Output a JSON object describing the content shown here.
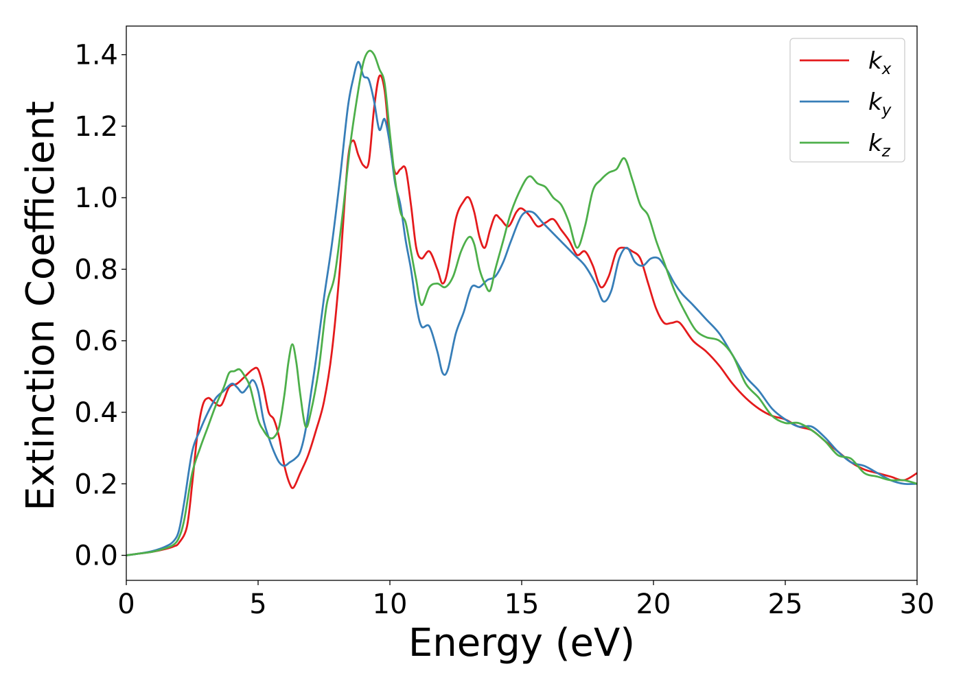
{
  "chart_data": {
    "type": "line",
    "title": "",
    "xlabel": "Energy (eV)",
    "ylabel": "Extinction Coefficient",
    "xlim": [
      0,
      30
    ],
    "ylim": [
      -0.07,
      1.48
    ],
    "xticks": [
      0,
      5,
      10,
      15,
      20,
      25,
      30
    ],
    "yticks": [
      0.0,
      0.2,
      0.4,
      0.6,
      0.8,
      1.0,
      1.2,
      1.4
    ],
    "xtick_labels": [
      "0",
      "5",
      "10",
      "15",
      "20",
      "25",
      "30"
    ],
    "ytick_labels": [
      "0.0",
      "0.2",
      "0.4",
      "0.6",
      "0.8",
      "1.0",
      "1.2",
      "1.4"
    ],
    "grid": false,
    "legend_position": "top-right",
    "series": [
      {
        "name": "k_x",
        "legend_base": "k",
        "legend_sub": "x",
        "color": "#e41a1c",
        "x": [
          0,
          0.5,
          1,
          1.5,
          1.8,
          2,
          2.3,
          2.5,
          2.7,
          2.9,
          3.1,
          3.3,
          3.6,
          3.9,
          4.2,
          4.5,
          4.8,
          5.0,
          5.2,
          5.4,
          5.6,
          5.8,
          6.0,
          6.2,
          6.35,
          6.6,
          6.9,
          7.2,
          7.5,
          7.8,
          8.1,
          8.4,
          8.6,
          8.8,
          9.0,
          9.2,
          9.4,
          9.6,
          9.8,
          10.0,
          10.2,
          10.4,
          10.6,
          10.8,
          11.0,
          11.2,
          11.5,
          11.8,
          12.0,
          12.2,
          12.5,
          12.8,
          13.0,
          13.2,
          13.4,
          13.6,
          13.8,
          14.0,
          14.2,
          14.5,
          14.8,
          15.0,
          15.3,
          15.6,
          15.9,
          16.2,
          16.5,
          16.8,
          17.1,
          17.4,
          17.7,
          18.0,
          18.3,
          18.6,
          18.9,
          19.2,
          19.5,
          19.8,
          20.1,
          20.4,
          20.7,
          21.0,
          21.5,
          22.0,
          22.5,
          23.0,
          23.5,
          24.0,
          24.5,
          25.0,
          25.5,
          26.0,
          26.5,
          27.0,
          27.5,
          28.0,
          28.5,
          29.0,
          29.5,
          30.0
        ],
        "y": [
          0.0,
          0.005,
          0.01,
          0.018,
          0.025,
          0.035,
          0.08,
          0.2,
          0.34,
          0.42,
          0.44,
          0.43,
          0.42,
          0.47,
          0.48,
          0.5,
          0.52,
          0.52,
          0.47,
          0.4,
          0.38,
          0.33,
          0.25,
          0.2,
          0.19,
          0.23,
          0.28,
          0.35,
          0.43,
          0.57,
          0.8,
          1.1,
          1.16,
          1.12,
          1.09,
          1.1,
          1.25,
          1.34,
          1.3,
          1.15,
          1.07,
          1.08,
          1.08,
          0.98,
          0.86,
          0.83,
          0.85,
          0.8,
          0.76,
          0.8,
          0.94,
          0.99,
          1.0,
          0.96,
          0.89,
          0.86,
          0.91,
          0.95,
          0.94,
          0.92,
          0.96,
          0.97,
          0.95,
          0.92,
          0.93,
          0.94,
          0.91,
          0.88,
          0.84,
          0.85,
          0.81,
          0.75,
          0.78,
          0.85,
          0.86,
          0.85,
          0.83,
          0.76,
          0.69,
          0.65,
          0.65,
          0.65,
          0.6,
          0.57,
          0.53,
          0.48,
          0.44,
          0.41,
          0.39,
          0.38,
          0.36,
          0.35,
          0.32,
          0.29,
          0.26,
          0.24,
          0.23,
          0.22,
          0.21,
          0.23
        ]
      },
      {
        "name": "k_y",
        "legend_base": "k",
        "legend_sub": "y",
        "color": "#377eb8",
        "x": [
          0,
          0.5,
          1,
          1.5,
          1.8,
          2.0,
          2.2,
          2.5,
          2.8,
          3.1,
          3.4,
          3.7,
          4.0,
          4.2,
          4.4,
          4.6,
          4.8,
          5.0,
          5.2,
          5.4,
          5.6,
          5.8,
          6.0,
          6.2,
          6.4,
          6.6,
          6.8,
          7.0,
          7.2,
          7.5,
          7.8,
          8.1,
          8.4,
          8.6,
          8.8,
          9.0,
          9.2,
          9.4,
          9.6,
          9.8,
          10.0,
          10.2,
          10.4,
          10.6,
          10.8,
          11.0,
          11.2,
          11.5,
          11.8,
          12.0,
          12.2,
          12.5,
          12.8,
          13.1,
          13.4,
          13.7,
          14.0,
          14.3,
          14.6,
          15.0,
          15.4,
          15.8,
          16.2,
          16.6,
          17.0,
          17.4,
          17.8,
          18.1,
          18.4,
          18.7,
          19.0,
          19.3,
          19.6,
          19.9,
          20.2,
          20.5,
          20.8,
          21.1,
          21.5,
          22.0,
          22.5,
          23.0,
          23.5,
          24.0,
          24.5,
          25.0,
          25.5,
          26.0,
          26.5,
          27.0,
          27.5,
          28.0,
          28.5,
          29.0,
          29.5,
          30.0
        ],
        "y": [
          0.0,
          0.005,
          0.012,
          0.025,
          0.04,
          0.07,
          0.15,
          0.29,
          0.35,
          0.4,
          0.44,
          0.46,
          0.48,
          0.47,
          0.455,
          0.47,
          0.49,
          0.46,
          0.38,
          0.33,
          0.29,
          0.26,
          0.25,
          0.26,
          0.27,
          0.29,
          0.35,
          0.45,
          0.55,
          0.72,
          0.87,
          1.05,
          1.25,
          1.33,
          1.38,
          1.34,
          1.33,
          1.27,
          1.19,
          1.22,
          1.15,
          1.04,
          0.98,
          0.88,
          0.8,
          0.7,
          0.64,
          0.64,
          0.57,
          0.51,
          0.52,
          0.62,
          0.68,
          0.75,
          0.75,
          0.77,
          0.78,
          0.82,
          0.88,
          0.95,
          0.96,
          0.93,
          0.9,
          0.87,
          0.84,
          0.81,
          0.76,
          0.71,
          0.74,
          0.83,
          0.86,
          0.82,
          0.81,
          0.83,
          0.83,
          0.8,
          0.76,
          0.73,
          0.7,
          0.66,
          0.62,
          0.56,
          0.5,
          0.46,
          0.41,
          0.38,
          0.36,
          0.36,
          0.33,
          0.29,
          0.26,
          0.25,
          0.23,
          0.21,
          0.2,
          0.2
        ]
      },
      {
        "name": "k_z",
        "legend_base": "k",
        "legend_sub": "z",
        "color": "#4daf4a",
        "x": [
          0,
          0.5,
          1,
          1.5,
          1.8,
          2.0,
          2.2,
          2.5,
          2.8,
          3.1,
          3.4,
          3.7,
          3.9,
          4.1,
          4.3,
          4.5,
          4.7,
          5.0,
          5.2,
          5.4,
          5.6,
          5.8,
          6.0,
          6.15,
          6.3,
          6.45,
          6.6,
          6.8,
          7.0,
          7.3,
          7.6,
          7.9,
          8.2,
          8.5,
          8.8,
          9.0,
          9.2,
          9.4,
          9.6,
          9.8,
          10.0,
          10.2,
          10.4,
          10.6,
          10.8,
          11.0,
          11.2,
          11.5,
          11.8,
          12.1,
          12.4,
          12.7,
          13.0,
          13.2,
          13.4,
          13.6,
          13.8,
          14.0,
          14.3,
          14.6,
          15.0,
          15.3,
          15.6,
          15.9,
          16.2,
          16.5,
          16.8,
          17.1,
          17.4,
          17.7,
          18.0,
          18.3,
          18.6,
          18.9,
          19.2,
          19.5,
          19.8,
          20.1,
          20.4,
          20.8,
          21.2,
          21.6,
          22.0,
          22.5,
          23.0,
          23.5,
          24.0,
          24.5,
          25.0,
          25.5,
          26.0,
          26.5,
          27.0,
          27.5,
          28.0,
          28.5,
          29.0,
          29.5,
          30.0
        ],
        "y": [
          0.0,
          0.005,
          0.01,
          0.02,
          0.03,
          0.05,
          0.1,
          0.23,
          0.3,
          0.36,
          0.42,
          0.47,
          0.51,
          0.515,
          0.52,
          0.5,
          0.47,
          0.38,
          0.35,
          0.33,
          0.33,
          0.36,
          0.45,
          0.54,
          0.59,
          0.54,
          0.45,
          0.36,
          0.4,
          0.52,
          0.7,
          0.78,
          0.95,
          1.15,
          1.3,
          1.38,
          1.41,
          1.4,
          1.36,
          1.32,
          1.18,
          1.05,
          0.96,
          0.93,
          0.85,
          0.77,
          0.7,
          0.75,
          0.76,
          0.75,
          0.78,
          0.85,
          0.89,
          0.87,
          0.8,
          0.76,
          0.74,
          0.8,
          0.88,
          0.96,
          1.03,
          1.06,
          1.04,
          1.03,
          1.0,
          0.98,
          0.93,
          0.86,
          0.92,
          1.02,
          1.05,
          1.07,
          1.08,
          1.11,
          1.05,
          0.98,
          0.95,
          0.88,
          0.82,
          0.74,
          0.68,
          0.63,
          0.61,
          0.6,
          0.56,
          0.48,
          0.44,
          0.39,
          0.37,
          0.37,
          0.35,
          0.32,
          0.28,
          0.27,
          0.23,
          0.22,
          0.21,
          0.21,
          0.2
        ]
      }
    ]
  }
}
